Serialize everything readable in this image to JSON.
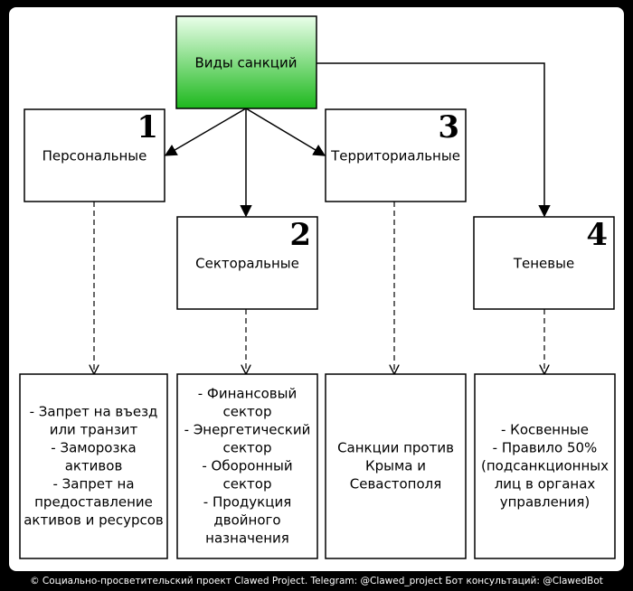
{
  "title": "Виды санкций",
  "nodes": [
    {
      "number": "1",
      "label": "Персональные",
      "details": [
        "- Запрет на въезд",
        "или транзит",
        "- Заморозка",
        "активов",
        "- Запрет на",
        "предоставление",
        "активов и ресурсов"
      ]
    },
    {
      "number": "2",
      "label": "Секторальные",
      "details": [
        "- Финансовый",
        "сектор",
        "- Энергетический",
        "сектор",
        "- Оборонный",
        "сектор",
        "- Продукция",
        "двойного",
        "назначения"
      ]
    },
    {
      "number": "3",
      "label": "Территориальные",
      "details": [
        "Санкции против",
        "Крыма и",
        "Севастополя"
      ]
    },
    {
      "number": "4",
      "label": "Теневые",
      "details": [
        "- Косвенные",
        "- Правило 50%",
        "(подсанкционных",
        "лиц в органах",
        "управления)"
      ]
    }
  ],
  "footer": "© Социально-просветительский проект Clawed Project. Telegram: @Clawed_project   Бот консультаций: @ClawedBot"
}
